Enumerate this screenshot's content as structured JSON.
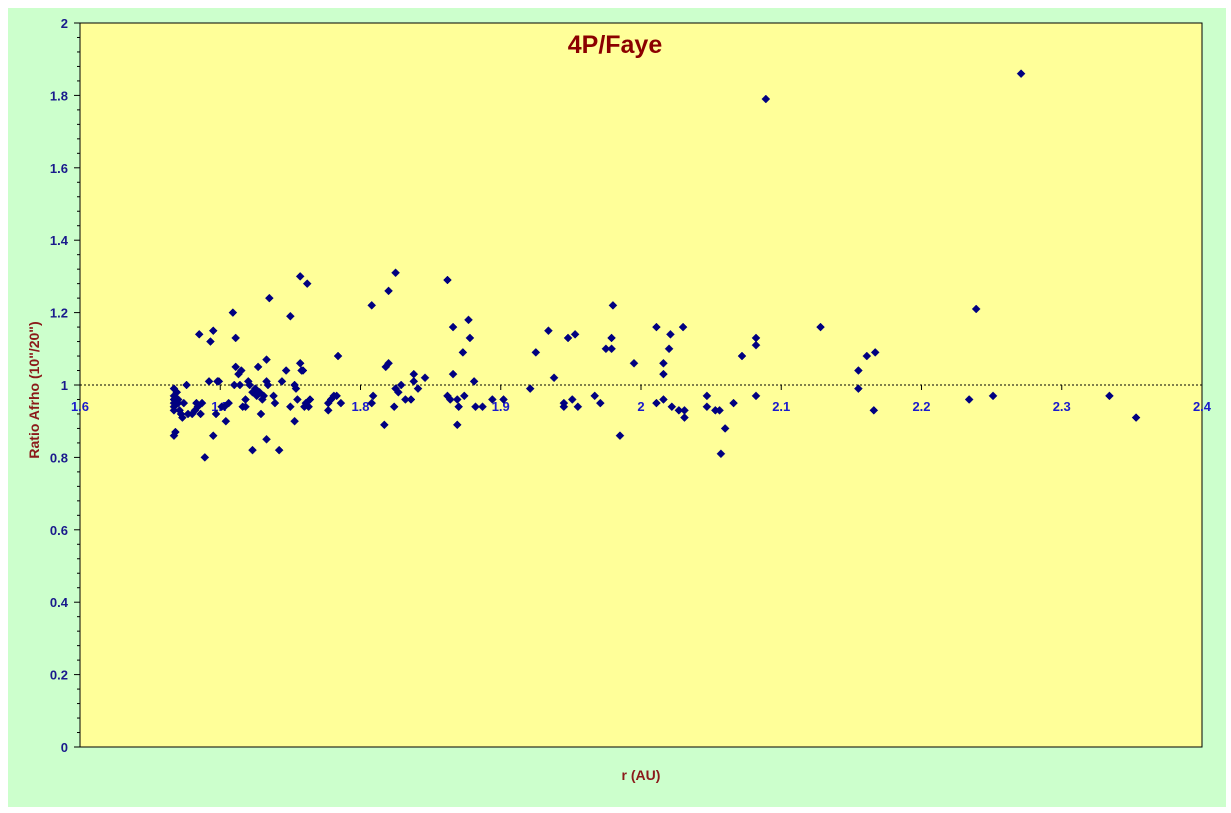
{
  "chart_data": {
    "type": "scatter",
    "title": "4P/Faye",
    "xlabel": "r (AU)",
    "ylabel": "Ratio Afrho (10\"/20\")",
    "xlim": [
      1.6,
      2.4
    ],
    "ylim": [
      0,
      2
    ],
    "x_ticks": [
      "1.6",
      "1.7",
      "1.8",
      "1.9",
      "2",
      "2.1",
      "2.2",
      "2.3",
      "2.4"
    ],
    "y_ticks": [
      "0",
      "0.2",
      "0.4",
      "0.6",
      "0.8",
      "1",
      "1.2",
      "1.4",
      "1.6",
      "1.8",
      "2"
    ],
    "x_axis_crosses_y_at": 1,
    "grid": false,
    "colors": {
      "plot_bg": "#ffff99",
      "chart_bg": "#ccffcc",
      "marker": "#000080",
      "title": "#8b0000",
      "axis_title": "#8b1a1a"
    },
    "marker": "diamond",
    "points": [
      [
        1.667,
        0.99
      ],
      [
        1.667,
        0.97
      ],
      [
        1.667,
        0.96
      ],
      [
        1.667,
        0.95
      ],
      [
        1.667,
        0.94
      ],
      [
        1.667,
        0.93
      ],
      [
        1.667,
        0.86
      ],
      [
        1.668,
        0.87
      ],
      [
        1.669,
        0.98
      ],
      [
        1.67,
        0.96
      ],
      [
        1.67,
        0.95
      ],
      [
        1.671,
        0.93
      ],
      [
        1.672,
        0.92
      ],
      [
        1.673,
        0.91
      ],
      [
        1.674,
        0.95
      ],
      [
        1.676,
        1.0
      ],
      [
        1.677,
        0.92
      ],
      [
        1.68,
        0.92
      ],
      [
        1.682,
        0.93
      ],
      [
        1.683,
        0.95
      ],
      [
        1.684,
        0.94
      ],
      [
        1.685,
        1.14
      ],
      [
        1.686,
        0.92
      ],
      [
        1.687,
        0.95
      ],
      [
        1.689,
        0.8
      ],
      [
        1.692,
        1.01
      ],
      [
        1.693,
        1.12
      ],
      [
        1.695,
        1.15
      ],
      [
        1.695,
        0.86
      ],
      [
        1.697,
        0.92
      ],
      [
        1.698,
        1.01
      ],
      [
        1.699,
        1.01
      ],
      [
        1.701,
        0.94
      ],
      [
        1.703,
        0.94
      ],
      [
        1.704,
        0.9
      ],
      [
        1.706,
        0.95
      ],
      [
        1.709,
        1.2
      ],
      [
        1.71,
        1.0
      ],
      [
        1.711,
        1.05
      ],
      [
        1.711,
        1.13
      ],
      [
        1.713,
        1.03
      ],
      [
        1.714,
        1.0
      ],
      [
        1.715,
        1.04
      ],
      [
        1.716,
        0.94
      ],
      [
        1.718,
        0.94
      ],
      [
        1.718,
        0.96
      ],
      [
        1.72,
        1.01
      ],
      [
        1.721,
        1.0
      ],
      [
        1.723,
        0.98
      ],
      [
        1.723,
        0.82
      ],
      [
        1.725,
        0.99
      ],
      [
        1.726,
        0.97
      ],
      [
        1.727,
        1.05
      ],
      [
        1.728,
        0.98
      ],
      [
        1.729,
        0.92
      ],
      [
        1.73,
        0.96
      ],
      [
        1.731,
        0.97
      ],
      [
        1.733,
        1.07
      ],
      [
        1.733,
        1.01
      ],
      [
        1.733,
        0.85
      ],
      [
        1.734,
        1.0
      ],
      [
        1.735,
        1.24
      ],
      [
        1.738,
        0.97
      ],
      [
        1.739,
        0.95
      ],
      [
        1.742,
        0.82
      ],
      [
        1.744,
        1.01
      ],
      [
        1.747,
        1.04
      ],
      [
        1.75,
        1.19
      ],
      [
        1.75,
        0.94
      ],
      [
        1.753,
        1.0
      ],
      [
        1.753,
        0.9
      ],
      [
        1.754,
        0.99
      ],
      [
        1.755,
        0.96
      ],
      [
        1.757,
        1.3
      ],
      [
        1.757,
        1.06
      ],
      [
        1.758,
        1.04
      ],
      [
        1.759,
        1.04
      ],
      [
        1.76,
        0.94
      ],
      [
        1.761,
        0.95
      ],
      [
        1.762,
        1.28
      ],
      [
        1.763,
        0.94
      ],
      [
        1.764,
        0.96
      ],
      [
        1.777,
        0.95
      ],
      [
        1.777,
        0.93
      ],
      [
        1.779,
        0.96
      ],
      [
        1.781,
        0.97
      ],
      [
        1.783,
        0.97
      ],
      [
        1.784,
        1.08
      ],
      [
        1.786,
        0.95
      ],
      [
        1.808,
        0.95
      ],
      [
        1.808,
        1.22
      ],
      [
        1.809,
        0.97
      ],
      [
        1.817,
        0.89
      ],
      [
        1.818,
        1.05
      ],
      [
        1.82,
        1.26
      ],
      [
        1.82,
        1.06
      ],
      [
        1.824,
        0.94
      ],
      [
        1.825,
        1.31
      ],
      [
        1.825,
        0.99
      ],
      [
        1.827,
        0.98
      ],
      [
        1.829,
        1.0
      ],
      [
        1.832,
        0.96
      ],
      [
        1.836,
        0.96
      ],
      [
        1.838,
        1.03
      ],
      [
        1.838,
        1.01
      ],
      [
        1.841,
        0.99
      ],
      [
        1.846,
        1.02
      ],
      [
        1.862,
        1.29
      ],
      [
        1.862,
        0.97
      ],
      [
        1.864,
        0.96
      ],
      [
        1.866,
        1.16
      ],
      [
        1.866,
        1.03
      ],
      [
        1.869,
        0.89
      ],
      [
        1.869,
        0.96
      ],
      [
        1.87,
        0.94
      ],
      [
        1.873,
        1.09
      ],
      [
        1.874,
        0.97
      ],
      [
        1.877,
        1.18
      ],
      [
        1.878,
        1.13
      ],
      [
        1.881,
        1.01
      ],
      [
        1.882,
        0.94
      ],
      [
        1.887,
        0.94
      ],
      [
        1.894,
        0.96
      ],
      [
        1.902,
        0.96
      ],
      [
        1.921,
        0.99
      ],
      [
        1.925,
        1.09
      ],
      [
        1.934,
        1.15
      ],
      [
        1.938,
        1.02
      ],
      [
        1.945,
        0.95
      ],
      [
        1.945,
        0.94
      ],
      [
        1.948,
        1.13
      ],
      [
        1.951,
        0.96
      ],
      [
        1.953,
        1.14
      ],
      [
        1.955,
        0.94
      ],
      [
        1.967,
        0.97
      ],
      [
        1.971,
        0.95
      ],
      [
        1.975,
        1.1
      ],
      [
        1.979,
        1.1
      ],
      [
        1.979,
        1.13
      ],
      [
        1.98,
        1.22
      ],
      [
        1.985,
        0.86
      ],
      [
        1.995,
        1.06
      ],
      [
        2.011,
        1.16
      ],
      [
        2.011,
        0.95
      ],
      [
        2.016,
        0.96
      ],
      [
        2.016,
        1.06
      ],
      [
        2.016,
        1.03
      ],
      [
        2.02,
        1.1
      ],
      [
        2.021,
        1.14
      ],
      [
        2.022,
        0.94
      ],
      [
        2.027,
        0.93
      ],
      [
        2.03,
        1.16
      ],
      [
        2.031,
        0.93
      ],
      [
        2.031,
        0.91
      ],
      [
        2.047,
        0.97
      ],
      [
        2.047,
        0.94
      ],
      [
        2.053,
        0.93
      ],
      [
        2.056,
        0.93
      ],
      [
        2.057,
        0.81
      ],
      [
        2.06,
        0.88
      ],
      [
        2.066,
        0.95
      ],
      [
        2.072,
        1.08
      ],
      [
        2.082,
        1.13
      ],
      [
        2.082,
        1.11
      ],
      [
        2.082,
        0.97
      ],
      [
        2.089,
        1.79
      ],
      [
        2.128,
        1.16
      ],
      [
        2.155,
        1.04
      ],
      [
        2.155,
        0.99
      ],
      [
        2.161,
        1.08
      ],
      [
        2.166,
        0.93
      ],
      [
        2.167,
        1.09
      ],
      [
        2.234,
        0.96
      ],
      [
        2.239,
        1.21
      ],
      [
        2.251,
        0.97
      ],
      [
        2.271,
        1.86
      ],
      [
        2.334,
        0.97
      ],
      [
        2.353,
        0.91
      ]
    ]
  }
}
